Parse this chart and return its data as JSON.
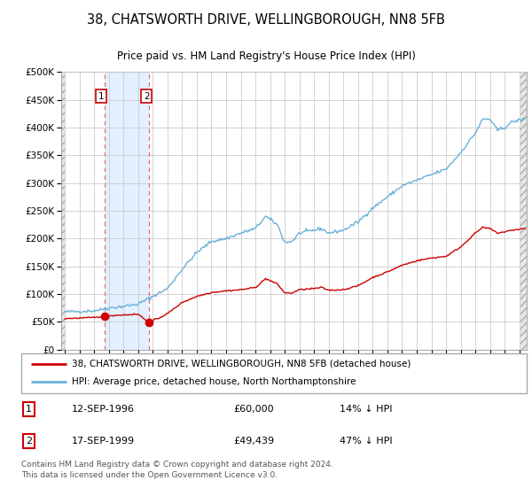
{
  "title": "38, CHATSWORTH DRIVE, WELLINGBOROUGH, NN8 5FB",
  "subtitle": "Price paid vs. HM Land Registry's House Price Index (HPI)",
  "legend_line1": "38, CHATSWORTH DRIVE, WELLINGBOROUGH, NN8 5FB (detached house)",
  "legend_line2": "HPI: Average price, detached house, North Northamptonshire",
  "footer": "Contains HM Land Registry data © Crown copyright and database right 2024.\nThis data is licensed under the Open Government Licence v3.0.",
  "transaction1_date": "12-SEP-1996",
  "transaction1_price": 60000,
  "transaction1_hpi_pct": "14% ↓ HPI",
  "transaction2_date": "17-SEP-1999",
  "transaction2_price": 49439,
  "transaction2_hpi_pct": "47% ↓ HPI",
  "hpi_color": "#6ab0d8",
  "price_color": "#cc0000",
  "bg_color": "#ffffff",
  "grid_color": "#cccccc",
  "shade_color": "#ddeeff",
  "ylim": [
    0,
    500000
  ],
  "yticks": [
    0,
    50000,
    100000,
    150000,
    200000,
    250000,
    300000,
    350000,
    400000,
    450000,
    500000
  ],
  "xstart": 1993.75,
  "xend": 2025.5,
  "transaction1_x": 1996.71,
  "transaction2_x": 1999.71,
  "hpi_anchors_x": [
    1994.0,
    1995.0,
    1996.0,
    1997.0,
    1998.0,
    1999.0,
    2000.0,
    2001.0,
    2002.0,
    2003.0,
    2004.0,
    2005.0,
    2006.0,
    2007.0,
    2007.7,
    2008.5,
    2009.0,
    2009.5,
    2010.0,
    2011.0,
    2011.5,
    2012.0,
    2013.0,
    2014.0,
    2015.0,
    2016.0,
    2017.0,
    2018.0,
    2019.0,
    2020.0,
    2021.0,
    2022.0,
    2022.5,
    2023.0,
    2023.5,
    2024.0,
    2024.5,
    2025.3
  ],
  "hpi_anchors_y": [
    68000,
    69000,
    70000,
    75000,
    78000,
    82000,
    96000,
    110000,
    145000,
    175000,
    195000,
    200000,
    210000,
    218000,
    240000,
    225000,
    193000,
    195000,
    210000,
    215000,
    218000,
    210000,
    215000,
    230000,
    255000,
    275000,
    295000,
    305000,
    315000,
    325000,
    355000,
    390000,
    415000,
    415000,
    395000,
    400000,
    410000,
    415000
  ],
  "price_anchors_x": [
    1994.0,
    1995.0,
    1996.0,
    1996.71,
    1997.5,
    1998.0,
    1999.0,
    1999.71,
    2000.5,
    2001.0,
    2002.0,
    2003.0,
    2004.0,
    2005.0,
    2006.0,
    2007.0,
    2007.7,
    2008.5,
    2009.0,
    2009.5,
    2010.0,
    2011.0,
    2011.5,
    2012.0,
    2013.0,
    2014.0,
    2015.0,
    2016.0,
    2017.0,
    2018.0,
    2019.0,
    2020.0,
    2021.0,
    2022.0,
    2022.5,
    2023.0,
    2023.5,
    2024.0,
    2024.5,
    2025.3
  ],
  "price_anchors_y": [
    56000,
    57000,
    58000,
    60000,
    62000,
    62500,
    64000,
    49439,
    58000,
    65000,
    85000,
    96000,
    103000,
    106000,
    108000,
    112000,
    128000,
    118000,
    102000,
    102000,
    108000,
    110000,
    112000,
    107000,
    108000,
    115000,
    130000,
    140000,
    152000,
    160000,
    165000,
    168000,
    185000,
    210000,
    220000,
    218000,
    210000,
    212000,
    215000,
    218000
  ],
  "noise_seed": 42,
  "hpi_noise_std": 1500,
  "price_noise_std": 600
}
